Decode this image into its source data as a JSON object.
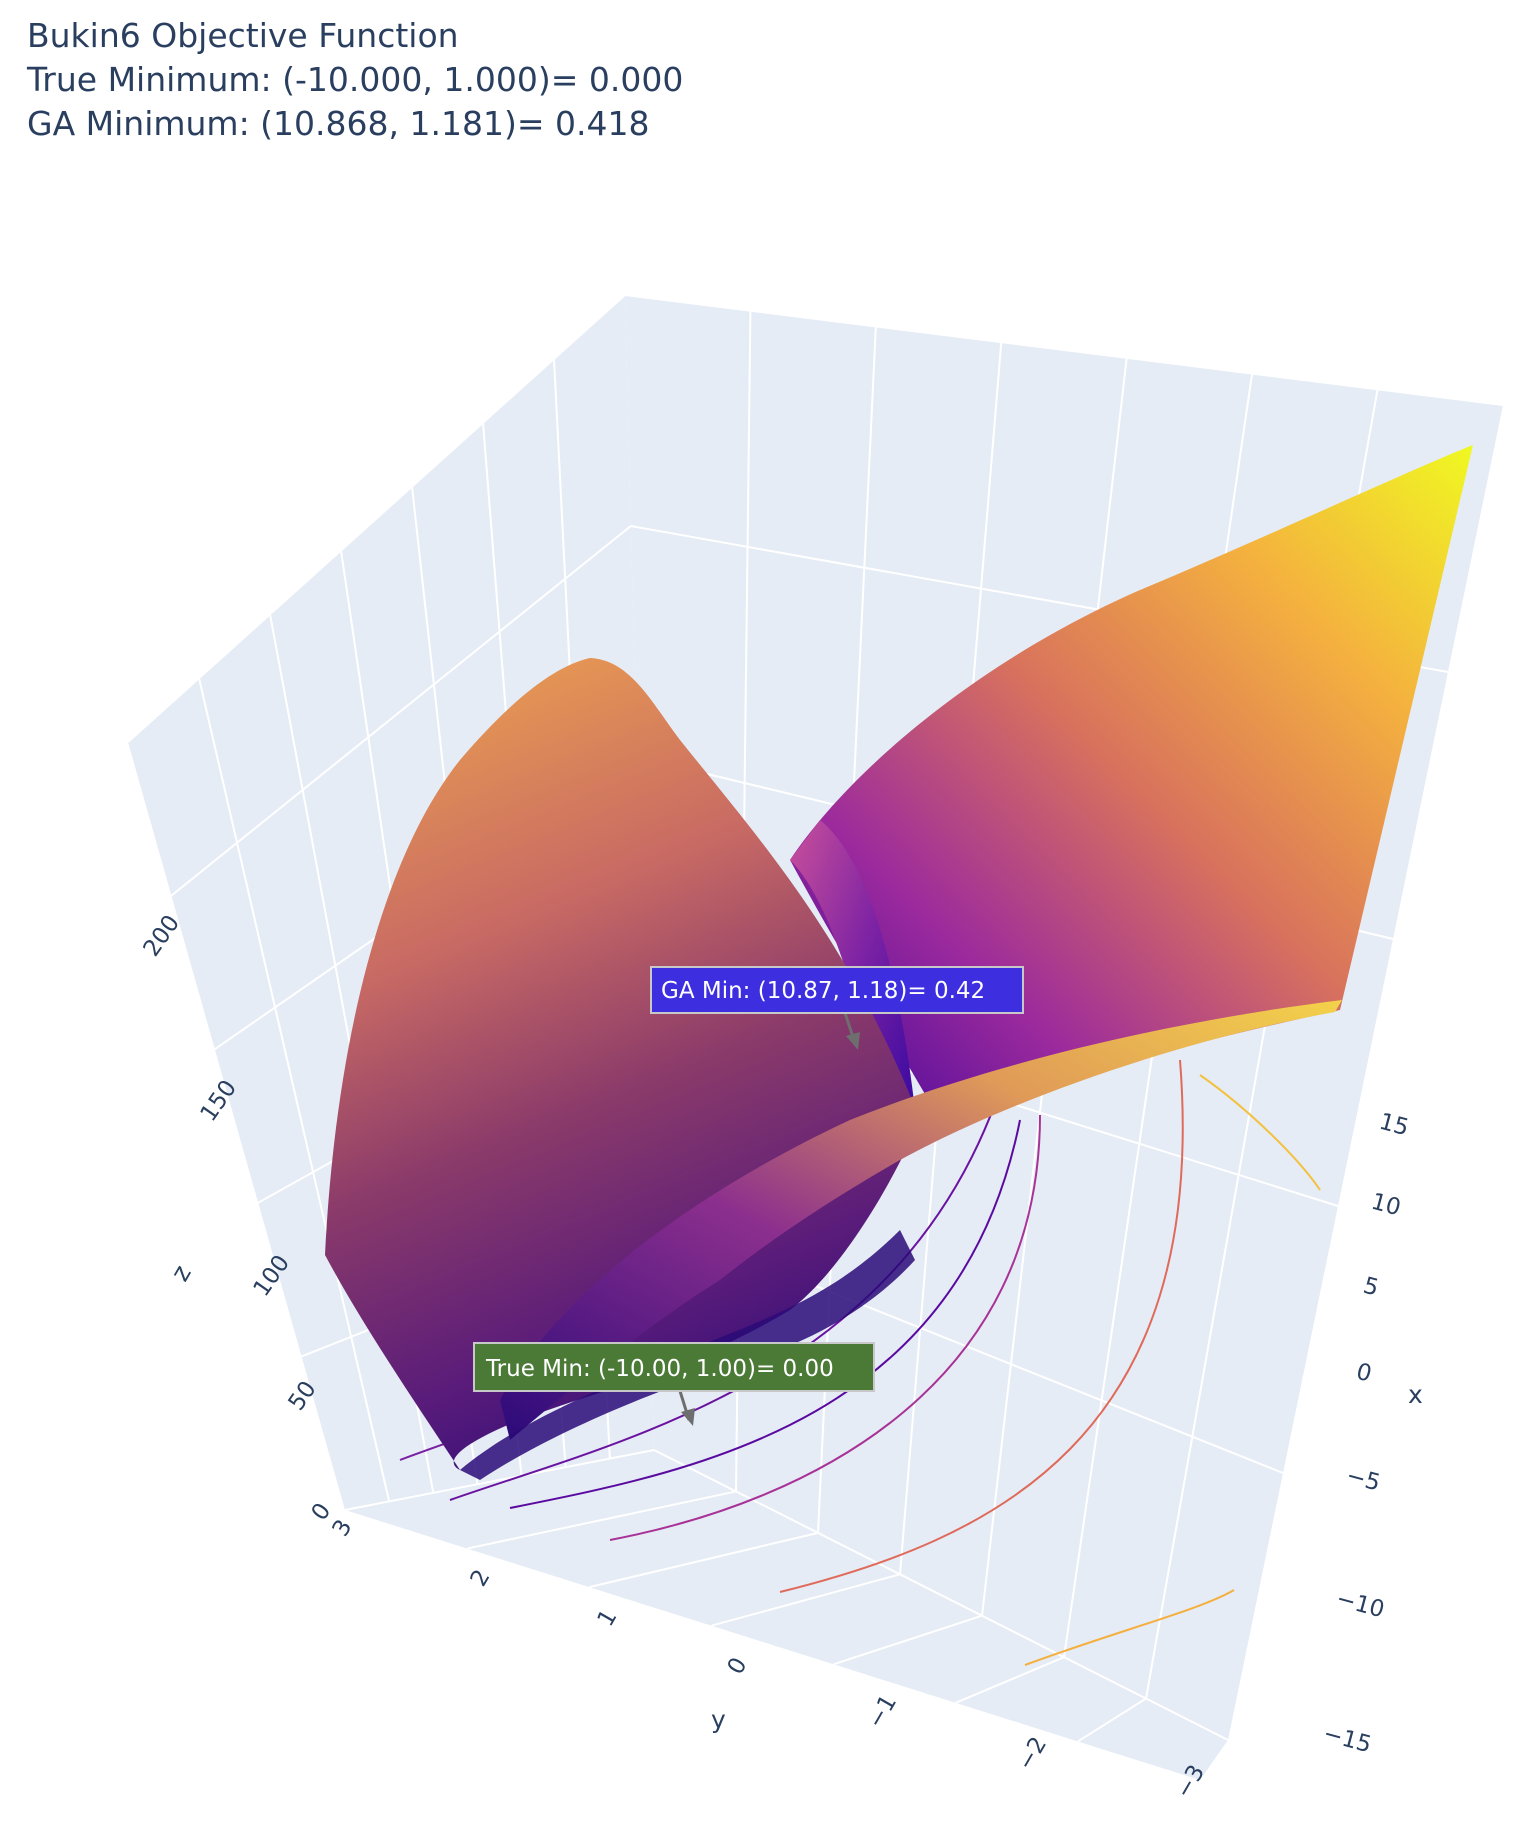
{
  "title": {
    "line1": "Bukin6 Objective Function",
    "line2": "True Minimum: (-10.000, 1.000)= 0.000",
    "line3": "GA Minimum: (10.868, 1.181)= 0.418"
  },
  "chart_data": {
    "type": "surface",
    "function": "Bukin6",
    "colorscale": "plasma",
    "x_axis": {
      "label": "x",
      "range": [
        -15,
        20
      ],
      "ticks": [
        "15",
        "10",
        "5",
        "0",
        "−5",
        "−10",
        "−15"
      ]
    },
    "y_axis": {
      "label": "y",
      "range": [
        -3,
        3
      ],
      "ticks": [
        "3",
        "2",
        "1",
        "0",
        "−1",
        "−2",
        "−3"
      ]
    },
    "z_axis": {
      "label": "z",
      "range": [
        0,
        230
      ],
      "ticks": [
        "0",
        "50",
        "100",
        "150",
        "200"
      ]
    },
    "grid": true,
    "contours_projected_on_floor": true,
    "annotations": [
      {
        "text": "GA Min: (10.87, 1.18)= 0.42",
        "x": 10.868,
        "y": 1.181,
        "z": 0.418,
        "color": "#3d2ee0"
      },
      {
        "text": "True Min: (-10.00, 1.00)= 0.00",
        "x": -10.0,
        "y": 1.0,
        "z": 0.0,
        "color": "#4a7a36"
      }
    ],
    "true_minimum": {
      "x": -10.0,
      "y": 1.0,
      "z": 0.0
    },
    "ga_minimum": {
      "x": 10.868,
      "y": 1.181,
      "z": 0.418
    }
  }
}
